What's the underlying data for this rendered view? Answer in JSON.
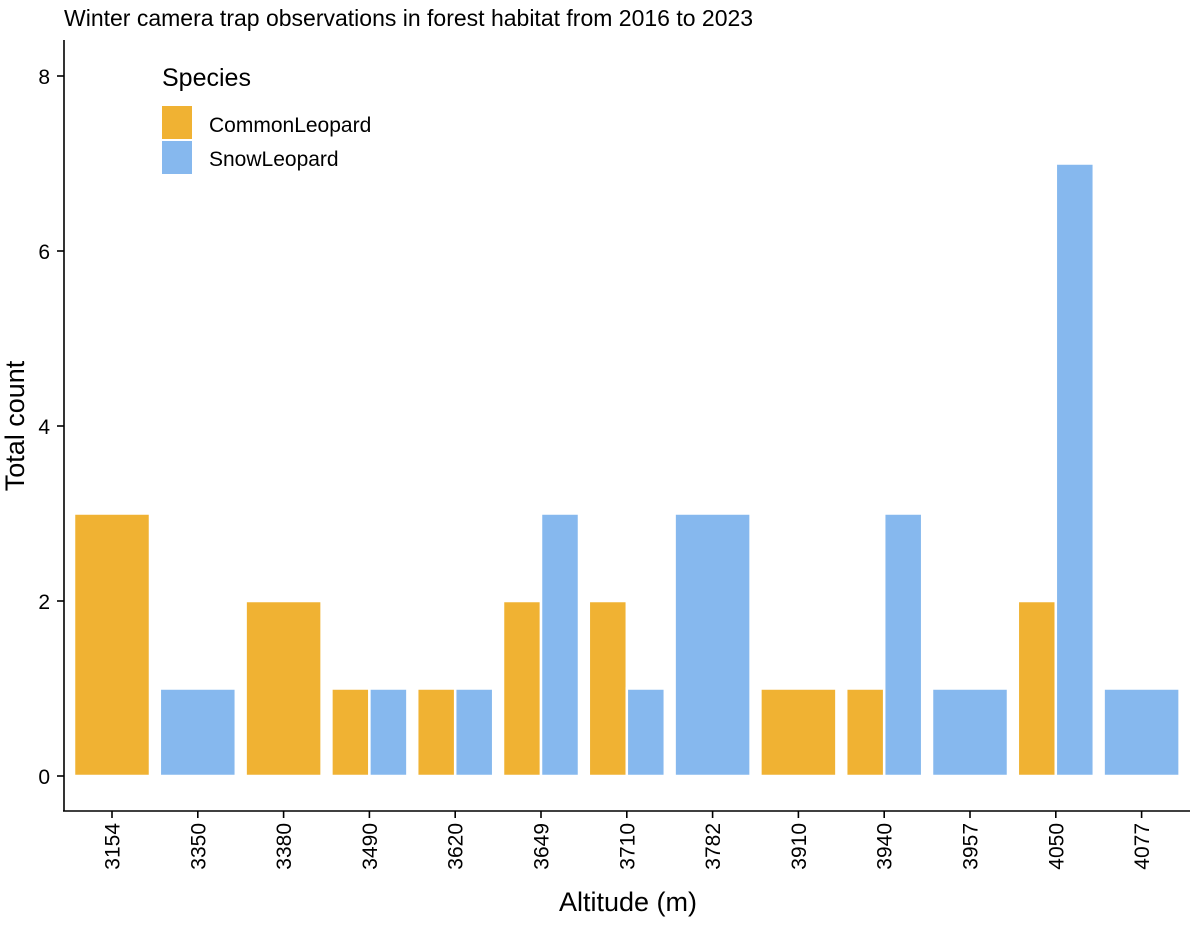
{
  "chart_data": {
    "type": "bar",
    "title": "Winter camera trap observations in forest habitat from 2016 to 2023",
    "xlabel": "Altitude (m)",
    "ylabel": "Total count",
    "ylim": [
      0,
      8.4
    ],
    "yticks": [
      0,
      2,
      4,
      6,
      8
    ],
    "grid": false,
    "legend": {
      "title": "Species",
      "placement": "top-left",
      "entries": [
        "CommonLeopard",
        "SnowLeopard"
      ]
    },
    "categories": [
      "3154",
      "3350",
      "3380",
      "3490",
      "3620",
      "3649",
      "3710",
      "3782",
      "3910",
      "3940",
      "3957",
      "4050",
      "4077"
    ],
    "series": [
      {
        "name": "CommonLeopard",
        "color": "#F0B233",
        "values": [
          3,
          null,
          2,
          1,
          1,
          2,
          2,
          null,
          1,
          1,
          null,
          2,
          null
        ]
      },
      {
        "name": "SnowLeopard",
        "color": "#86B8EE",
        "values": [
          null,
          1,
          null,
          1,
          1,
          3,
          1,
          3,
          null,
          3,
          1,
          7,
          1
        ]
      }
    ]
  }
}
